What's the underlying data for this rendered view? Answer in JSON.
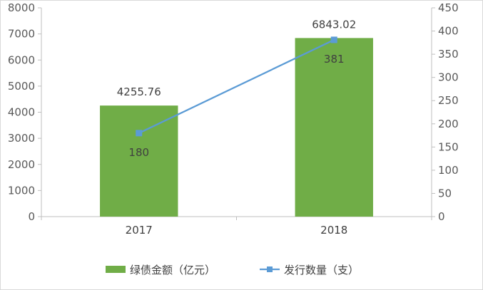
{
  "chart_data": {
    "type": "bar+line",
    "categories": [
      "2017",
      "2018"
    ],
    "series": [
      {
        "name": "绿债金额（亿元）",
        "type": "bar",
        "axis": "left",
        "values": [
          4255.76,
          6843.02
        ],
        "data_labels": [
          "4255.76",
          "6843.02"
        ],
        "color": "#70ad47"
      },
      {
        "name": "发行数量（支）",
        "type": "line",
        "axis": "right",
        "marker": "square",
        "values": [
          180,
          381
        ],
        "data_labels": [
          "180",
          "381"
        ],
        "color": "#5b9bd5"
      }
    ],
    "y_left": {
      "min": 0,
      "max": 8000,
      "step": 1000,
      "ticks": [
        "0",
        "1000",
        "2000",
        "3000",
        "4000",
        "5000",
        "6000",
        "7000",
        "8000"
      ]
    },
    "y_right": {
      "min": 0,
      "max": 450,
      "step": 50,
      "ticks": [
        "0",
        "50",
        "100",
        "150",
        "200",
        "250",
        "300",
        "350",
        "400",
        "450"
      ]
    },
    "grid": false,
    "legend": "bottom"
  }
}
